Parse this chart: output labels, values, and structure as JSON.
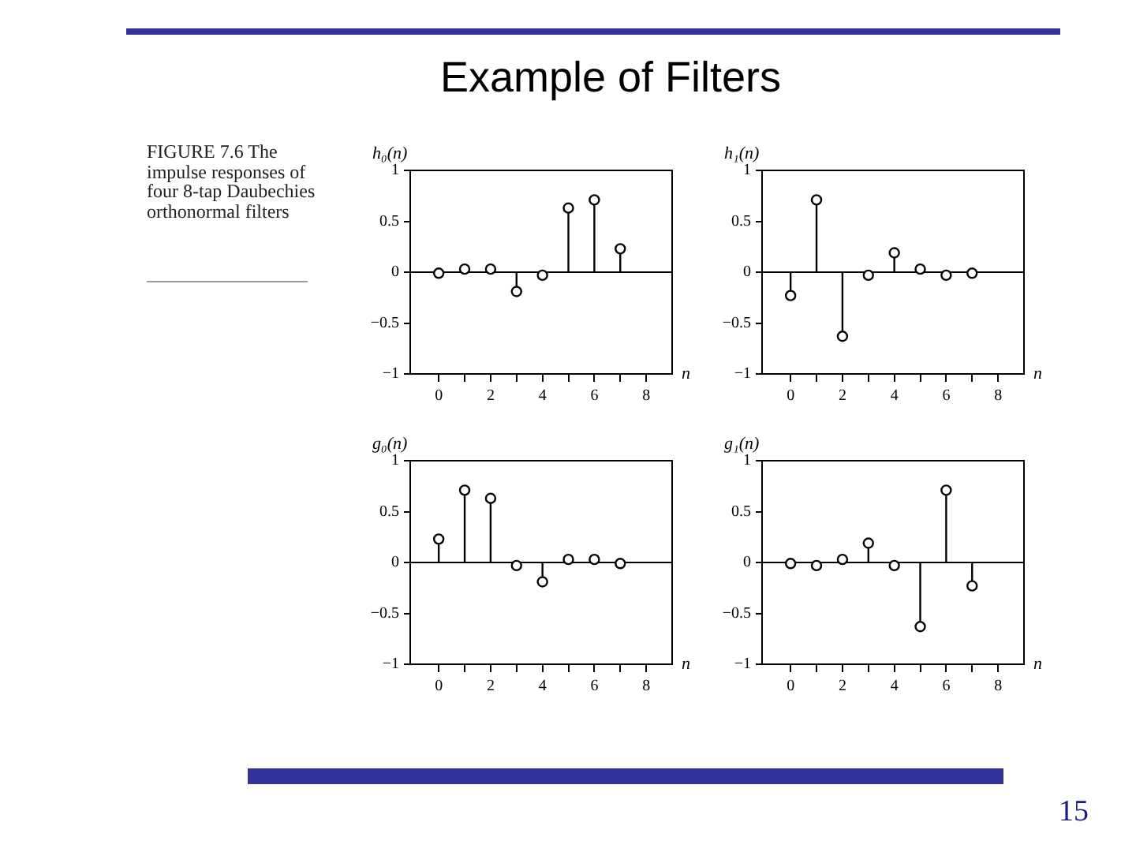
{
  "chart_data": [
    {
      "type": "lollipop",
      "title": "Example of Filters",
      "annotations": [
        "FIGURE 7.6 The impulse responses of four 8-tap Daubechies orthonormal filters"
      ],
      "ylabel": "h₀(n)",
      "xlabel": "n",
      "x": [
        0,
        1,
        2,
        3,
        4,
        5,
        6,
        7
      ],
      "values": [
        -0.01,
        0.03,
        0.03,
        -0.19,
        -0.03,
        0.63,
        0.71,
        0.23
      ],
      "ref_lines": [
        {
          "axis": "y",
          "value": 0
        }
      ],
      "color": "#000000",
      "marker": "circle",
      "xlim": [
        -1.1,
        9
      ],
      "xticks": [
        0,
        {
          "value": 1,
          "label": null
        },
        2,
        {
          "value": 3,
          "label": null
        },
        4,
        {
          "value": 5,
          "label": null
        },
        6,
        {
          "value": 7,
          "label": null
        },
        8
      ],
      "ylim": [
        -1,
        1
      ],
      "yticks": [
        -1,
        -0.5,
        0,
        0.5,
        1
      ],
      "grid": false
    },
    {
      "type": "lollipop",
      "ylabel": "h₁(n)",
      "xlabel": "n",
      "x": [
        0,
        1,
        2,
        3,
        4,
        5,
        6,
        7
      ],
      "values": [
        -0.23,
        0.71,
        -0.63,
        -0.03,
        0.19,
        0.03,
        -0.03,
        -0.01
      ],
      "ref_lines": [
        {
          "axis": "y",
          "value": 0
        }
      ],
      "color": "#000000",
      "marker": "circle",
      "xlim": [
        -1.1,
        9
      ],
      "xticks": [
        0,
        {
          "value": 1,
          "label": null
        },
        2,
        {
          "value": 3,
          "label": null
        },
        4,
        {
          "value": 5,
          "label": null
        },
        6,
        {
          "value": 7,
          "label": null
        },
        8
      ],
      "ylim": [
        -1,
        1
      ],
      "yticks": [
        -1,
        -0.5,
        0,
        0.5,
        1
      ],
      "grid": false
    },
    {
      "type": "lollipop",
      "ylabel": "g₀(n)",
      "xlabel": "n",
      "x": [
        0,
        1,
        2,
        3,
        4,
        5,
        6,
        7
      ],
      "values": [
        0.23,
        0.71,
        0.63,
        -0.03,
        -0.19,
        0.03,
        0.03,
        -0.01
      ],
      "ref_lines": [
        {
          "axis": "y",
          "value": 0
        }
      ],
      "color": "#000000",
      "marker": "circle",
      "xlim": [
        -1.1,
        9
      ],
      "xticks": [
        0,
        {
          "value": 1,
          "label": null
        },
        2,
        {
          "value": 3,
          "label": null
        },
        4,
        {
          "value": 5,
          "label": null
        },
        6,
        {
          "value": 7,
          "label": null
        },
        8
      ],
      "ylim": [
        -1,
        1
      ],
      "yticks": [
        -1,
        -0.5,
        0,
        0.5,
        1
      ],
      "grid": false
    },
    {
      "type": "lollipop",
      "annotations": [
        "15"
      ],
      "ylabel": "g₁(n)",
      "xlabel": "n",
      "x": [
        0,
        1,
        2,
        3,
        4,
        5,
        6,
        7
      ],
      "values": [
        -0.01,
        -0.03,
        0.03,
        0.19,
        -0.03,
        -0.63,
        0.71,
        -0.23
      ],
      "ref_lines": [
        {
          "axis": "y",
          "value": 0
        }
      ],
      "color": "#000000",
      "marker": "circle",
      "xlim": [
        -1.1,
        9
      ],
      "xticks": [
        0,
        {
          "value": 1,
          "label": null
        },
        2,
        {
          "value": 3,
          "label": null
        },
        4,
        {
          "value": 5,
          "label": null
        },
        6,
        {
          "value": 7,
          "label": null
        },
        8
      ],
      "ylim": [
        -1,
        1
      ],
      "yticks": [
        -1,
        -0.5,
        0,
        0.5,
        1
      ],
      "grid": false
    }
  ]
}
